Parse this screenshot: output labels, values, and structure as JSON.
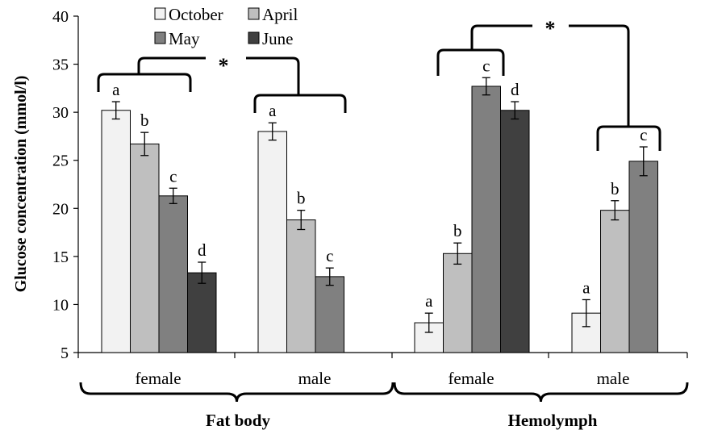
{
  "chart_data": {
    "type": "bar",
    "title": "",
    "xlabel": "",
    "ylabel": "Glucose concentration (mmol/l)",
    "ylim": [
      5,
      40
    ],
    "yticks": [
      5,
      10,
      15,
      20,
      25,
      30,
      35,
      40
    ],
    "grid": false,
    "legend_position": "top-left",
    "series": [
      {
        "name": "October",
        "color": "#f2f2f2"
      },
      {
        "name": "April",
        "color": "#bfbfbf"
      },
      {
        "name": "May",
        "color": "#808080"
      },
      {
        "name": "June",
        "color": "#404040"
      }
    ],
    "groups": [
      {
        "tissue": "Fat body",
        "label": "female",
        "bars": [
          {
            "series": "October",
            "value": 30.2,
            "error": 0.9,
            "letter": "a"
          },
          {
            "series": "April",
            "value": 26.7,
            "error": 1.2,
            "letter": "b"
          },
          {
            "series": "May",
            "value": 21.3,
            "error": 0.8,
            "letter": "c"
          },
          {
            "series": "June",
            "value": 13.3,
            "error": 1.1,
            "letter": "d"
          }
        ]
      },
      {
        "tissue": "Fat body",
        "label": "male",
        "bars": [
          {
            "series": "October",
            "value": 28.0,
            "error": 0.9,
            "letter": "a"
          },
          {
            "series": "April",
            "value": 18.8,
            "error": 1.0,
            "letter": "b"
          },
          {
            "series": "May",
            "value": 12.9,
            "error": 0.9,
            "letter": "c"
          }
        ]
      },
      {
        "tissue": "Hemolymph",
        "label": "female",
        "bars": [
          {
            "series": "October",
            "value": 8.1,
            "error": 1.0,
            "letter": "a"
          },
          {
            "series": "April",
            "value": 15.3,
            "error": 1.1,
            "letter": "b"
          },
          {
            "series": "May",
            "value": 32.7,
            "error": 0.9,
            "letter": "c"
          },
          {
            "series": "June",
            "value": 30.2,
            "error": 0.9,
            "letter": "d"
          }
        ]
      },
      {
        "tissue": "Hemolymph",
        "label": "male",
        "bars": [
          {
            "series": "October",
            "value": 9.1,
            "error": 1.4,
            "letter": "a"
          },
          {
            "series": "April",
            "value": 19.8,
            "error": 1.0,
            "letter": "b"
          },
          {
            "series": "May",
            "value": 24.9,
            "error": 1.5,
            "letter": "c"
          }
        ]
      }
    ],
    "tissues": [
      "Fat body",
      "Hemolymph"
    ],
    "significance": [
      {
        "between": [
          "female",
          "male"
        ],
        "tissue": "Fat body",
        "label": "*"
      },
      {
        "between": [
          "female",
          "male"
        ],
        "tissue": "Hemolymph",
        "label": "*"
      }
    ]
  }
}
